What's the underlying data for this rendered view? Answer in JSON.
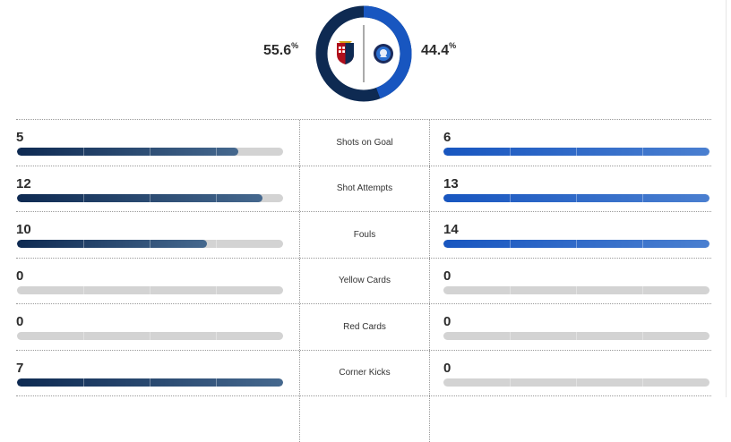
{
  "possession": {
    "home_value": "55.6",
    "away_value": "44.4",
    "unit": "%",
    "home_fraction": 0.556,
    "away_fraction": 0.444,
    "home_color": "#0e2a52",
    "away_color": "#1856c0",
    "home_crest_icon": "genoa-crest-icon",
    "away_crest_icon": "atalanta-crest-icon"
  },
  "stats": [
    {
      "label": "Shots on Goal",
      "home": "5",
      "away": "6",
      "home_fraction": 0.83,
      "away_fraction": 1.0
    },
    {
      "label": "Shot Attempts",
      "home": "12",
      "away": "13",
      "home_fraction": 0.923,
      "away_fraction": 1.0
    },
    {
      "label": "Fouls",
      "home": "10",
      "away": "14",
      "home_fraction": 0.714,
      "away_fraction": 1.0
    },
    {
      "label": "Yellow Cards",
      "home": "0",
      "away": "0",
      "home_fraction": 0,
      "away_fraction": 0
    },
    {
      "label": "Red Cards",
      "home": "0",
      "away": "0",
      "home_fraction": 0,
      "away_fraction": 0
    },
    {
      "label": "Corner Kicks",
      "home": "7",
      "away": "0",
      "home_fraction": 1.0,
      "away_fraction": 0
    },
    {
      "label": "",
      "home": "",
      "away": "",
      "home_fraction": 0,
      "away_fraction": 0
    }
  ]
}
